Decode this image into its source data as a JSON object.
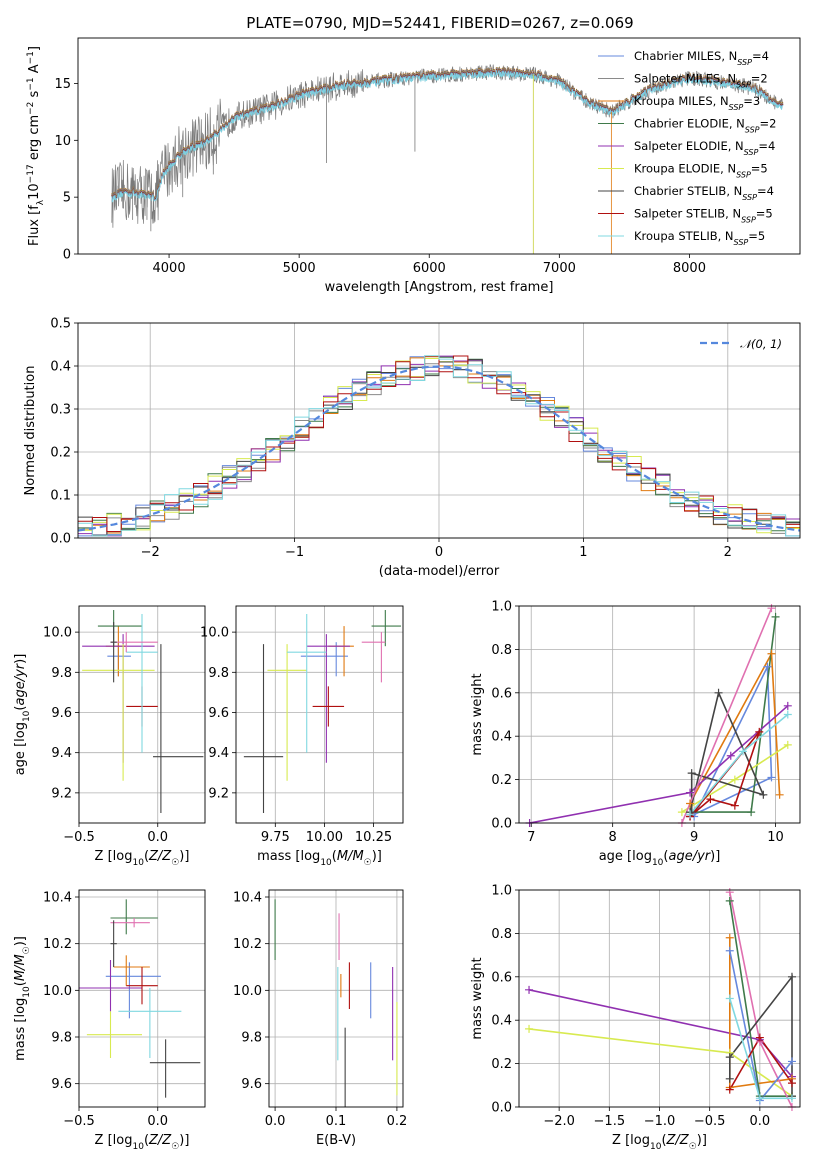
{
  "figure": {
    "title": "PLATE=0790, MJD=52441, FIBERID=0267, z=0.069"
  },
  "colors": {
    "Chabrier MILES": "#6688dd",
    "Salpeter MILES": "#8a8a8a",
    "Kroupa MILES": "#e07a10",
    "Chabrier ELODIE": "#3f7a4a",
    "Salpeter ELODIE": "#9030b0",
    "Kroupa ELODIE": "#d8ea50",
    "Chabrier STELIB": "#444444",
    "Salpeter STELIB": "#b01010",
    "Kroupa STELIB": "#80d8e0",
    "extra pink": "#e070b0",
    "gauss": "#5588dd"
  },
  "chart_data": [
    {
      "type": "line",
      "title": "PLATE=0790, MJD=52441, FIBERID=0267, z=0.069",
      "xlabel": "wavelength [Angstrom, rest frame]",
      "ylabel": "Flux [f_λ 10^-17 erg cm^-2 s^-1 A^-1]",
      "xlim": [
        3300,
        8850
      ],
      "ylim": [
        0,
        19
      ],
      "xticks": [
        4000,
        5000,
        6000,
        7000,
        8000
      ],
      "yticks": [
        0,
        5,
        10,
        15
      ],
      "legend_position": "right",
      "continuum": {
        "x": [
          3560,
          3650,
          3800,
          3900,
          3950,
          4100,
          4300,
          4500,
          4800,
          5000,
          5300,
          5600,
          5900,
          6200,
          6500,
          6800,
          7000,
          7200,
          7400,
          7700,
          8000,
          8300,
          8500,
          8700
        ],
        "y": [
          5,
          5.5,
          5.3,
          5,
          7,
          9,
          10,
          12,
          13,
          14,
          14.8,
          15.2,
          15.6,
          15.8,
          16,
          15.8,
          15.2,
          13.5,
          12.5,
          14.5,
          15.5,
          15,
          14.6,
          13
        ]
      },
      "series": [
        {
          "name": "Chabrier MILES",
          "nssp": "4"
        },
        {
          "name": "Salpeter MILES",
          "nssp": "2"
        },
        {
          "name": "Kroupa MILES",
          "nssp": "3"
        },
        {
          "name": "Chabrier ELODIE",
          "nssp": "2"
        },
        {
          "name": "Salpeter ELODIE",
          "nssp": "4"
        },
        {
          "name": "Kroupa ELODIE",
          "nssp": "5"
        },
        {
          "name": "Chabrier STELIB",
          "nssp": "4"
        },
        {
          "name": "Salpeter STELIB",
          "nssp": "5"
        },
        {
          "name": "Kroupa STELIB",
          "nssp": "5"
        }
      ]
    },
    {
      "type": "line",
      "xlabel": "(data-model)/error",
      "ylabel": "Normed distribution",
      "xlim": [
        -2.5,
        2.5
      ],
      "ylim": [
        0,
        0.5
      ],
      "xticks": [
        -2,
        -1,
        0,
        1,
        2
      ],
      "xticklabels": [
        "−2",
        "−1",
        "0",
        "1",
        "2"
      ],
      "yticks": [
        0.0,
        0.1,
        0.2,
        0.3,
        0.4,
        0.5
      ],
      "yticklabels": [
        "0.0",
        "0.1",
        "0.2",
        "0.3",
        "0.4",
        "0.5"
      ],
      "legend": "𝒩(0, 1)",
      "legend_position": "top-right",
      "grid": true
    },
    {
      "type": "scatter",
      "xlabel": "Z [log10(Z/Z☉)]",
      "ylabel": "age  [log10(age/yr)]",
      "xlim": [
        -0.5,
        0.3
      ],
      "ylim": [
        9.05,
        10.13
      ],
      "xticks": [
        -0.5,
        0.0
      ],
      "xticklabels": [
        "−0.5",
        "0.0"
      ],
      "yticks": [
        9.2,
        9.4,
        9.6,
        9.8,
        10.0
      ],
      "yticklabels": [
        "9.2",
        "9.4",
        "9.6",
        "9.8",
        "10.0"
      ],
      "points": [
        {
          "series": "Chabrier MILES",
          "x": -0.25,
          "y": 9.88,
          "xerr": [
            0.07,
            0.08
          ],
          "yerr": [
            0.1,
            0.07
          ]
        },
        {
          "series": "Kroupa MILES",
          "x": -0.25,
          "y": 9.93,
          "xerr": [
            0.08,
            0.05
          ],
          "yerr": [
            0.15,
            0.1
          ]
        },
        {
          "series": "Chabrier ELODIE",
          "x": -0.28,
          "y": 10.03,
          "xerr": [
            0.1,
            0.18
          ],
          "yerr": [
            0.1,
            0.08
          ]
        },
        {
          "series": "Salpeter ELODIE",
          "x": -0.22,
          "y": 9.93,
          "xerr": [
            0.26,
            0.2
          ],
          "yerr": [
            0.58,
            0.06
          ]
        },
        {
          "series": "Kroupa ELODIE",
          "x": -0.22,
          "y": 9.81,
          "xerr": [
            0.26,
            0.2
          ],
          "yerr": [
            0.55,
            0.13
          ]
        },
        {
          "series": "Chabrier STELIB",
          "x": 0.02,
          "y": 9.38,
          "xerr": [
            0.05,
            0.27
          ],
          "yerr": [
            0.28,
            0.56
          ]
        },
        {
          "series": "Salpeter STELIB",
          "x": -0.1,
          "y": 9.63,
          "xerr": [
            0.1,
            0.1
          ],
          "yerr": [
            0.1,
            0.1
          ]
        },
        {
          "series": "Kroupa STELIB",
          "x": -0.1,
          "y": 9.9,
          "xerr": [
            0.1,
            0.1
          ],
          "yerr": [
            0.5,
            0.19
          ]
        },
        {
          "series": "extra pink",
          "x": -0.2,
          "y": 9.95,
          "xerr": [
            0.1,
            0.2
          ],
          "yerr": [
            0.05,
            0.05
          ]
        },
        {
          "series": "Chabrier STELIB",
          "x": -0.28,
          "y": 9.95,
          "xerr": [
            0.02,
            0.02
          ],
          "yerr": [
            0.2,
            0.1
          ]
        }
      ]
    },
    {
      "type": "scatter",
      "xlabel": "mass [log10(M/M☉)]",
      "xlim": [
        9.55,
        10.4
      ],
      "ylim": [
        9.05,
        10.13
      ],
      "xticks": [
        9.75,
        10.0,
        10.25
      ],
      "xticklabels": [
        "9.75",
        "10.00",
        "10.25"
      ],
      "yticks": [
        9.2,
        9.4,
        9.6,
        9.8,
        10.0
      ],
      "yticklabels": [
        "9.2",
        "9.4",
        "9.6",
        "9.8",
        "10.0"
      ],
      "points": [
        {
          "series": "Chabrier MILES",
          "x": 10.06,
          "y": 9.88,
          "xerr": [
            0.18,
            0.06
          ],
          "yerr": [
            0.1,
            0.07
          ]
        },
        {
          "series": "Kroupa MILES",
          "x": 10.1,
          "y": 9.93,
          "xerr": [
            0.08,
            0.05
          ],
          "yerr": [
            0.15,
            0.1
          ]
        },
        {
          "series": "Chabrier ELODIE",
          "x": 10.31,
          "y": 10.03,
          "xerr": [
            0.07,
            0.08
          ],
          "yerr": [
            0.1,
            0.08
          ]
        },
        {
          "series": "Salpeter ELODIE",
          "x": 10.01,
          "y": 9.93,
          "xerr": [
            0.1,
            0.12
          ],
          "yerr": [
            0.58,
            0.06
          ]
        },
        {
          "series": "Kroupa ELODIE",
          "x": 9.81,
          "y": 9.81,
          "xerr": [
            0.1,
            0.1
          ],
          "yerr": [
            0.55,
            0.13
          ]
        },
        {
          "series": "Chabrier STELIB",
          "x": 9.69,
          "y": 9.38,
          "xerr": [
            0.1,
            0.1
          ],
          "yerr": [
            0.28,
            0.56
          ]
        },
        {
          "series": "Salpeter STELIB",
          "x": 10.02,
          "y": 9.63,
          "xerr": [
            0.08,
            0.08
          ],
          "yerr": [
            0.1,
            0.1
          ]
        },
        {
          "series": "Kroupa STELIB",
          "x": 9.91,
          "y": 9.9,
          "xerr": [
            0.1,
            0.1
          ],
          "yerr": [
            0.5,
            0.19
          ]
        },
        {
          "series": "extra pink",
          "x": 10.29,
          "y": 9.95,
          "xerr": [
            0.1,
            0.02
          ],
          "yerr": [
            0.2,
            0.05
          ]
        }
      ]
    },
    {
      "type": "line",
      "xlabel": "age  [log10(age/yr)]",
      "ylabel": "mass weight",
      "xlim": [
        6.85,
        10.3
      ],
      "ylim": [
        0,
        1
      ],
      "xticks": [
        7,
        8,
        9,
        10
      ],
      "xticklabels": [
        "7",
        "8",
        "9",
        "10"
      ],
      "yticks": [
        0.0,
        0.2,
        0.4,
        0.6,
        0.8,
        1.0
      ],
      "yticklabels": [
        "0.0",
        "0.2",
        "0.4",
        "0.6",
        "0.8",
        "1.0"
      ],
      "grid": true,
      "series": [
        {
          "name": "Chabrier MILES",
          "x": [
            8.95,
            9.95,
            9.9,
            9.0
          ],
          "y": [
            0.03,
            0.21,
            0.72,
            0.03
          ]
        },
        {
          "name": "Kroupa MILES",
          "x": [
            8.95,
            9.95,
            10.05
          ],
          "y": [
            0.09,
            0.78,
            0.13
          ]
        },
        {
          "name": "Chabrier ELODIE",
          "x": [
            8.95,
            9.7,
            10.0
          ],
          "y": [
            0.05,
            0.05,
            0.95
          ]
        },
        {
          "name": "Salpeter ELODIE",
          "x": [
            6.98,
            8.95,
            9.45,
            10.15
          ],
          "y": [
            0.0,
            0.14,
            0.31,
            0.54
          ]
        },
        {
          "name": "Kroupa ELODIE",
          "x": [
            8.85,
            9.5,
            10.15
          ],
          "y": [
            0.05,
            0.2,
            0.36
          ]
        },
        {
          "name": "Chabrier STELIB",
          "x": [
            8.95,
            9.3,
            9.85,
            8.97,
            8.97
          ],
          "y": [
            0.05,
            0.6,
            0.13,
            0.23,
            0.05
          ]
        },
        {
          "name": "Salpeter STELIB",
          "x": [
            8.95,
            9.2,
            9.5,
            9.8,
            8.95
          ],
          "y": [
            0.03,
            0.11,
            0.08,
            0.42,
            0.03
          ]
        },
        {
          "name": "Kroupa STELIB",
          "x": [
            8.95,
            9.6,
            10.15
          ],
          "y": [
            0.04,
            0.33,
            0.5
          ]
        },
        {
          "name": "extra pink",
          "x": [
            8.85,
            9.95
          ],
          "y": [
            0.0,
            0.99
          ]
        }
      ]
    },
    {
      "type": "scatter",
      "xlabel": "Z [log10(Z/Z☉)]",
      "ylabel": "mass [log10(M/M☉)]",
      "xlim": [
        -0.5,
        0.3
      ],
      "ylim": [
        9.5,
        10.43
      ],
      "xticks": [
        -0.5,
        0.0
      ],
      "xticklabels": [
        "−0.5",
        "0.0"
      ],
      "yticks": [
        9.6,
        9.8,
        10.0,
        10.2,
        10.4
      ],
      "yticklabels": [
        "9.6",
        "9.8",
        "10.0",
        "10.2",
        "10.4"
      ],
      "points": [
        {
          "series": "Chabrier MILES",
          "x": -0.18,
          "y": 10.06,
          "xerr": [
            0.15,
            0.2
          ],
          "yerr": [
            0.18,
            0.06
          ]
        },
        {
          "series": "Kroupa MILES",
          "x": -0.2,
          "y": 10.1,
          "xerr": [
            0.08,
            0.15
          ],
          "yerr": [
            0.08,
            0.05
          ]
        },
        {
          "series": "Chabrier ELODIE",
          "x": -0.2,
          "y": 10.31,
          "xerr": [
            0.1,
            0.2
          ],
          "yerr": [
            0.07,
            0.08
          ]
        },
        {
          "series": "Salpeter ELODIE",
          "x": -0.3,
          "y": 10.01,
          "xerr": [
            0.2,
            0.2
          ],
          "yerr": [
            0.1,
            0.12
          ]
        },
        {
          "series": "Kroupa ELODIE",
          "x": -0.3,
          "y": 9.81,
          "xerr": [
            0.15,
            0.2
          ],
          "yerr": [
            0.1,
            0.1
          ]
        },
        {
          "series": "Chabrier STELIB",
          "x": 0.05,
          "y": 9.69,
          "xerr": [
            0.1,
            0.22
          ],
          "yerr": [
            0.15,
            0.1
          ]
        },
        {
          "series": "Salpeter STELIB",
          "x": -0.1,
          "y": 10.02,
          "xerr": [
            0.1,
            0.1
          ],
          "yerr": [
            0.08,
            0.08
          ]
        },
        {
          "series": "Kroupa STELIB",
          "x": -0.05,
          "y": 9.91,
          "xerr": [
            0.2,
            0.2
          ],
          "yerr": [
            0.2,
            0.1
          ]
        },
        {
          "series": "extra pink",
          "x": -0.15,
          "y": 10.29,
          "xerr": [
            0.15,
            0.1
          ],
          "yerr": [
            0.02,
            0.02
          ]
        },
        {
          "series": "Chabrier STELIB",
          "x": -0.28,
          "y": 10.2,
          "xerr": [
            0.02,
            0.02
          ],
          "yerr": [
            0.1,
            0.1
          ]
        }
      ]
    },
    {
      "type": "scatter",
      "xlabel": "E(B-V)",
      "xlim": [
        -0.01,
        0.21
      ],
      "ylim": [
        9.5,
        10.43
      ],
      "xticks": [
        0.0,
        0.1,
        0.2
      ],
      "xticklabels": [
        "0.0",
        "0.1",
        "0.2"
      ],
      "yticks": [
        9.6,
        9.8,
        10.0,
        10.2,
        10.4
      ],
      "yticklabels": [
        "9.6",
        "9.8",
        "10.0",
        "10.2",
        "10.4"
      ],
      "points": [
        {
          "series": "Chabrier ELODIE",
          "x": 0.0,
          "y": 10.26,
          "yerr": [
            0.13,
            0.13
          ]
        },
        {
          "series": "extra pink",
          "x": 0.105,
          "y": 10.23,
          "yerr": [
            0.1,
            0.1
          ]
        },
        {
          "series": "Kroupa MILES",
          "x": 0.108,
          "y": 10.02,
          "yerr": [
            0.05,
            0.05
          ]
        },
        {
          "series": "Kroupa STELIB",
          "x": 0.103,
          "y": 9.9,
          "yerr": [
            0.2,
            0.2
          ]
        },
        {
          "series": "Salpeter STELIB",
          "x": 0.122,
          "y": 10.02,
          "yerr": [
            0.1,
            0.1
          ]
        },
        {
          "series": "Chabrier STELIB",
          "x": 0.115,
          "y": 9.69,
          "yerr": [
            0.25,
            0.15
          ]
        },
        {
          "series": "Chabrier MILES",
          "x": 0.157,
          "y": 10.0,
          "yerr": [
            0.12,
            0.12
          ]
        },
        {
          "series": "Salpeter ELODIE",
          "x": 0.193,
          "y": 9.9,
          "yerr": [
            0.2,
            0.2
          ]
        },
        {
          "series": "Kroupa ELODIE",
          "x": 0.2,
          "y": 9.75,
          "yerr": [
            0.2,
            0.2
          ]
        }
      ]
    },
    {
      "type": "line",
      "xlabel": "Z [log10(Z/Z☉)]",
      "ylabel": "mass weight",
      "xlim": [
        -2.4,
        0.4
      ],
      "ylim": [
        0,
        1
      ],
      "xticks": [
        -2.0,
        -1.5,
        -1.0,
        -0.5,
        0.0
      ],
      "xticklabels": [
        "−2.0",
        "−1.5",
        "−1.0",
        "−0.5",
        "0.0"
      ],
      "yticks": [
        0.0,
        0.2,
        0.4,
        0.6,
        0.8,
        1.0
      ],
      "yticklabels": [
        "0.0",
        "0.2",
        "0.4",
        "0.6",
        "0.8",
        "1.0"
      ],
      "grid": true,
      "series": [
        {
          "name": "Salpeter ELODIE",
          "x": [
            -2.3,
            0.0,
            0.32
          ],
          "y": [
            0.54,
            0.31,
            0.14
          ]
        },
        {
          "name": "Kroupa ELODIE",
          "x": [
            -2.3,
            -0.3,
            0.32
          ],
          "y": [
            0.36,
            0.25,
            0.05
          ]
        },
        {
          "name": "Kroupa MILES",
          "x": [
            -0.3,
            -0.3,
            0.32
          ],
          "y": [
            0.78,
            0.09,
            0.13
          ]
        },
        {
          "name": "Chabrier ELODIE",
          "x": [
            -0.3,
            0.0,
            0.32
          ],
          "y": [
            0.95,
            0.05,
            0.05
          ]
        },
        {
          "name": "extra pink",
          "x": [
            -0.3,
            0.0,
            0.32
          ],
          "y": [
            0.99,
            0.3,
            0.0
          ]
        },
        {
          "name": "Chabrier MILES",
          "x": [
            -0.3,
            0.0,
            0.32
          ],
          "y": [
            0.72,
            0.03,
            0.21
          ]
        },
        {
          "name": "Chabrier STELIB",
          "x": [
            -0.3,
            -0.3,
            0.32,
            0.32
          ],
          "y": [
            0.13,
            0.23,
            0.6,
            0.05
          ]
        },
        {
          "name": "Salpeter STELIB",
          "x": [
            -0.3,
            0.0,
            0.32
          ],
          "y": [
            0.08,
            0.32,
            0.11
          ]
        },
        {
          "name": "Kroupa STELIB",
          "x": [
            -0.3,
            0.0,
            0.32
          ],
          "y": [
            0.5,
            0.04,
            0.04
          ]
        }
      ]
    }
  ]
}
